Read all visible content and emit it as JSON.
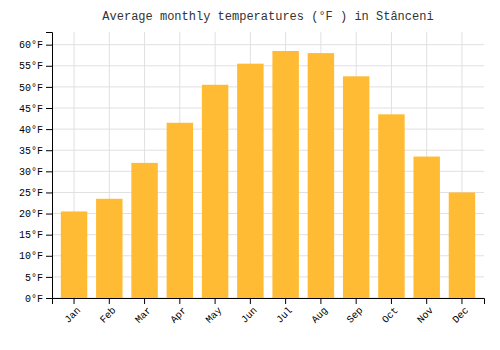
{
  "chart_data": {
    "type": "bar",
    "title": "Average monthly temperatures (°F ) in Stânceni",
    "categories": [
      "Jan",
      "Feb",
      "Mar",
      "Apr",
      "May",
      "Jun",
      "Jul",
      "Aug",
      "Sep",
      "Oct",
      "Nov",
      "Dec"
    ],
    "values": [
      20.5,
      23.5,
      32.0,
      41.5,
      50.5,
      55.5,
      58.5,
      58.0,
      52.5,
      43.5,
      33.5,
      25.0
    ],
    "color": "#FFBB33",
    "ylim": [
      0,
      63
    ],
    "yticks": [
      {
        "value": 0,
        "label": "0°F"
      },
      {
        "value": 5,
        "label": "5°F"
      },
      {
        "value": 10,
        "label": "10°F"
      },
      {
        "value": 15,
        "label": "15°F"
      },
      {
        "value": 20,
        "label": "20°F"
      },
      {
        "value": 25,
        "label": "25°F"
      },
      {
        "value": 30,
        "label": "30°F"
      },
      {
        "value": 35,
        "label": "35°F"
      },
      {
        "value": 40,
        "label": "40°F"
      },
      {
        "value": 45,
        "label": "45°F"
      },
      {
        "value": 50,
        "label": "50°F"
      },
      {
        "value": 55,
        "label": "55°F"
      },
      {
        "value": 60,
        "label": "60°F"
      }
    ],
    "grid": true
  }
}
